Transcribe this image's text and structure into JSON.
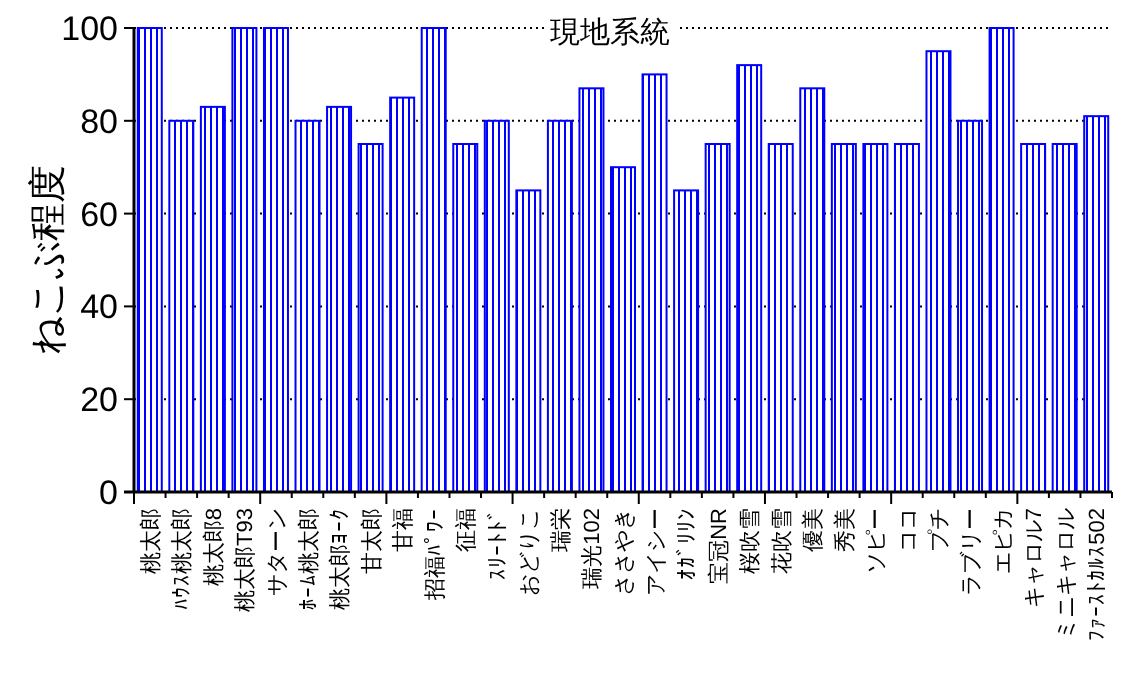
{
  "chart_data": {
    "type": "bar",
    "title": "現地系統",
    "ylabel": "ねこぶ程度",
    "categories": [
      "桃太郎",
      "ﾊｳｽ桃太郎",
      "桃太郎8",
      "桃太郎T93",
      "サターン",
      "ﾎｰﾑ桃太郎",
      "桃太郎ﾖｰｸ",
      "甘太郎",
      "甘福",
      "招福ﾊﾟﾜｰ",
      "征福",
      "ｽﾘｰﾄﾄﾞ",
      "おどりこ",
      "瑞栄",
      "瑞光102",
      "ささやき",
      "アイシー",
      "ｵｶﾞﾘﾘﾝ",
      "宝冠NR",
      "桜吹雪",
      "花吹雪",
      "優美",
      "秀美",
      "ソピー",
      "ココ",
      "プチ",
      "ラブリー",
      "エピカ",
      "キャロル7",
      "ミニキャロル",
      "ﾌｧｰｽﾄｶﾙｽ502"
    ],
    "values": [
      100,
      80,
      83,
      100,
      100,
      80,
      83,
      75,
      85,
      100,
      75,
      80,
      65,
      80,
      87,
      70,
      90,
      65,
      75,
      92,
      75,
      87,
      75,
      75,
      75,
      95,
      80,
      100,
      75,
      75,
      81
    ],
    "color": "#0000ff",
    "ylim": [
      0,
      100
    ],
    "yticks": [
      0,
      20,
      40,
      60,
      80,
      100
    ],
    "grid": "y"
  }
}
